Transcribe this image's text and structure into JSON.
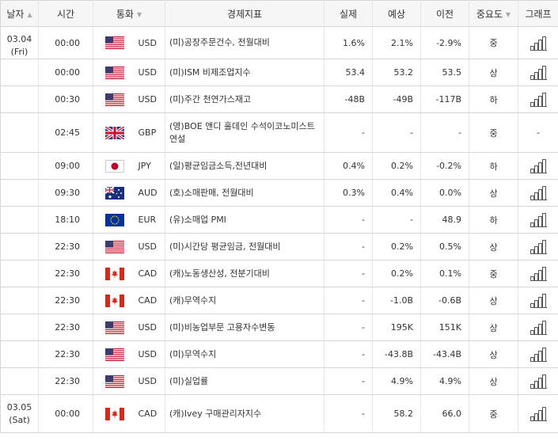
{
  "headers": [
    {
      "label": "날자",
      "sortable": true
    },
    {
      "label": "시간",
      "sortable": false
    },
    {
      "label": "통화",
      "sortable": true
    },
    {
      "label": "경제지표",
      "sortable": false
    },
    {
      "label": "실제",
      "sortable": false
    },
    {
      "label": "예상",
      "sortable": false
    },
    {
      "label": "이전",
      "sortable": false
    },
    {
      "label": "중요도",
      "sortable": true
    },
    {
      "label": "그래프",
      "sortable": false
    }
  ],
  "rows": [
    {
      "date": "03.04",
      "day": "(Fri)",
      "time": "00:00",
      "flag": "us-flag",
      "currency": "USD",
      "indicator": "(미)공장주문건수, 전월대비",
      "actual": "1.6%",
      "forecast": "2.1%",
      "previous": "-2.9%",
      "importance": "중",
      "graph": true
    },
    {
      "time": "00:00",
      "flag": "us-flag",
      "currency": "USD",
      "indicator": "(미)ISM 비제조업지수",
      "actual": "53.4",
      "forecast": "53.2",
      "previous": "53.5",
      "importance": "상",
      "graph": true
    },
    {
      "time": "00:30",
      "flag": "us-flag",
      "currency": "USD",
      "indicator": "(미)주간 천연가스재고",
      "actual": "-48B",
      "forecast": "-49B",
      "previous": "-117B",
      "importance": "하",
      "graph": true
    },
    {
      "time": "02:45",
      "flag": "uk-flag",
      "currency": "GBP",
      "indicator": "(영)BOE 앤디 홀데인 수석이코노미스트 연설",
      "actual": "-",
      "forecast": "-",
      "previous": "-",
      "importance": "중",
      "graph": false,
      "graph_text": "-",
      "tall": true
    },
    {
      "time": "09:00",
      "flag": "jp-flag",
      "currency": "JPY",
      "indicator": "(일)평균임금소득,전년대비",
      "actual": "0.4%",
      "forecast": "0.2%",
      "previous": "-0.2%",
      "importance": "하",
      "graph": true
    },
    {
      "time": "09:30",
      "flag": "au-flag",
      "currency": "AUD",
      "indicator": "(호)소매판매, 전월대비",
      "actual": "0.3%",
      "forecast": "0.4%",
      "previous": "0.0%",
      "importance": "상",
      "graph": true
    },
    {
      "time": "18:10",
      "flag": "eu-flag",
      "currency": "EUR",
      "indicator": "(유)소매업 PMI",
      "actual": "-",
      "forecast": "-",
      "previous": "48.9",
      "importance": "하",
      "graph": true
    },
    {
      "time": "22:30",
      "flag": "us-flag",
      "currency": "USD",
      "indicator": "(미)시간당 평균임금, 전월대비",
      "actual": "-",
      "forecast": "0.2%",
      "previous": "0.5%",
      "importance": "상",
      "graph": true
    },
    {
      "time": "22:30",
      "flag": "ca-flag",
      "currency": "CAD",
      "indicator": "(캐)노동생산성, 전분기대비",
      "actual": "-",
      "forecast": "0.2%",
      "previous": "0.1%",
      "importance": "중",
      "graph": true
    },
    {
      "time": "22:30",
      "flag": "ca-flag",
      "currency": "CAD",
      "indicator": "(캐)무역수지",
      "actual": "-",
      "forecast": "-1.0B",
      "previous": "-0.6B",
      "importance": "상",
      "graph": true
    },
    {
      "time": "22:30",
      "flag": "us-flag",
      "currency": "USD",
      "indicator": "(미)비농업부문 고용자수변동",
      "actual": "-",
      "forecast": "195K",
      "previous": "151K",
      "importance": "상",
      "graph": true
    },
    {
      "time": "22:30",
      "flag": "us-flag",
      "currency": "USD",
      "indicator": "(미)무역수지",
      "actual": "-",
      "forecast": "-43.8B",
      "previous": "-43.4B",
      "importance": "상",
      "graph": true
    },
    {
      "time": "22:30",
      "flag": "us-flag",
      "currency": "USD",
      "indicator": "(미)실업률",
      "actual": "-",
      "forecast": "4.9%",
      "previous": "4.9%",
      "importance": "상",
      "graph": true
    },
    {
      "date": "03.05",
      "day": "(Sat)",
      "time": "00:00",
      "flag": "ca-flag",
      "currency": "CAD",
      "indicator": "(캐)Ivey 구매관리자지수",
      "actual": "-",
      "forecast": "58.2",
      "previous": "66.0",
      "importance": "중",
      "graph": true,
      "last": true
    }
  ],
  "colors": {
    "header_bg": "#f6f6f6",
    "border": "#d6d6d6",
    "text": "#333333",
    "graph_icon": "#555555"
  }
}
